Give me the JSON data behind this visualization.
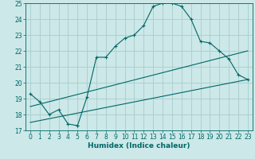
{
  "xlabel": "Humidex (Indice chaleur)",
  "bg_color": "#cce8e8",
  "grid_color": "#aacccc",
  "line_color": "#006666",
  "xlim": [
    -0.5,
    23.5
  ],
  "ylim": [
    17,
    25
  ],
  "xticks": [
    0,
    1,
    2,
    3,
    4,
    5,
    6,
    7,
    8,
    9,
    10,
    11,
    12,
    13,
    14,
    15,
    16,
    17,
    18,
    19,
    20,
    21,
    22,
    23
  ],
  "yticks": [
    17,
    18,
    19,
    20,
    21,
    22,
    23,
    24,
    25
  ],
  "line1_x": [
    0,
    1,
    2,
    3,
    4,
    5,
    5,
    6,
    7,
    8,
    9,
    10,
    11,
    12,
    13,
    14,
    15,
    16,
    17,
    18,
    19,
    20,
    21,
    22,
    23
  ],
  "line1_y": [
    19.3,
    18.8,
    18.0,
    18.3,
    17.4,
    17.3,
    17.3,
    19.1,
    21.6,
    21.6,
    22.3,
    22.8,
    23.0,
    23.6,
    24.8,
    25.0,
    25.0,
    24.8,
    24.0,
    22.6,
    22.5,
    22.0,
    21.5,
    20.5,
    20.2
  ],
  "line2_x": [
    0,
    23
  ],
  "line2_y": [
    18.5,
    22.0
  ],
  "line3_x": [
    0,
    23
  ],
  "line3_y": [
    17.5,
    20.2
  ],
  "xlabel_fontsize": 6.5,
  "tick_fontsize": 5.5
}
